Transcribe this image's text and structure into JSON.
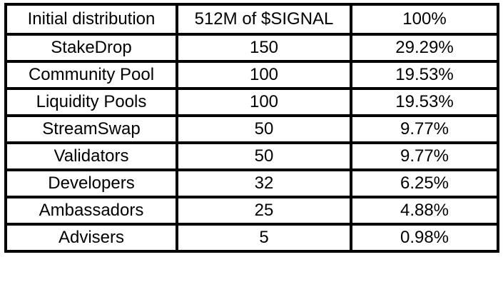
{
  "header": {
    "label": "Initial distribution",
    "amount": "512M of $SIGNAL",
    "percent": "100%"
  },
  "rows": [
    {
      "label": "StakeDrop",
      "amount": "150",
      "percent": "29.29%"
    },
    {
      "label": "Community Pool",
      "amount": "100",
      "percent": "19.53%"
    },
    {
      "label": "Liquidity Pools",
      "amount": "100",
      "percent": "19.53%"
    },
    {
      "label": "StreamSwap",
      "amount": "50",
      "percent": "9.77%"
    },
    {
      "label": "Validators",
      "amount": "50",
      "percent": "9.77%"
    },
    {
      "label": "Developers",
      "amount": "32",
      "percent": "6.25%"
    },
    {
      "label": "Ambassadors",
      "amount": "25",
      "percent": "4.88%"
    },
    {
      "label": "Advisers",
      "amount": "5",
      "percent": "0.98%"
    }
  ]
}
